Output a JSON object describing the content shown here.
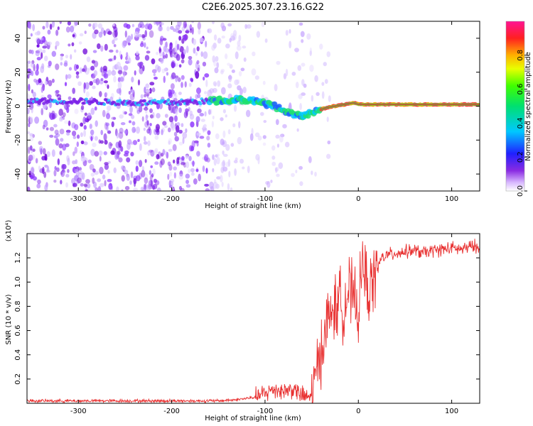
{
  "title": "C2E6.2025.307.23.16.G22",
  "chart_data": [
    {
      "type": "heatmap",
      "xlabel": "Height of straight line (km)",
      "ylabel": "Frequency (Hz)",
      "xlim": [
        -355,
        130
      ],
      "ylim": [
        -50,
        50
      ],
      "x_ticks": [
        -300,
        -200,
        -100,
        0,
        100
      ],
      "y_ticks": [
        -40,
        -20,
        0,
        20,
        40
      ],
      "colorbar": {
        "label": "Normalized spectral amplitude",
        "range": [
          0,
          1
        ],
        "ticks": [
          "0.0",
          "0.2",
          "0.4",
          "0.6",
          "0.8"
        ]
      },
      "trace": {
        "x": [
          -355,
          -300,
          -250,
          -200,
          -160,
          -130,
          -110,
          -90,
          -75,
          -62,
          -55,
          -45,
          -35,
          -25,
          -15,
          -5,
          0,
          10,
          20,
          50,
          100,
          130
        ],
        "y": [
          3,
          3,
          2,
          2,
          3,
          4,
          3,
          0,
          -4,
          -6,
          -5,
          -3,
          -1,
          0,
          1,
          2,
          1,
          1,
          1,
          1,
          1,
          1
        ]
      }
    },
    {
      "type": "line",
      "xlabel": "Height of straight line (km)",
      "ylabel": "SNR (10 * v/v)",
      "scale_label": "(x10⁴)",
      "xlim": [
        -355,
        130
      ],
      "ylim": [
        0,
        1.4
      ],
      "x_ticks": [
        -300,
        -200,
        -100,
        0,
        100
      ],
      "y_ticks": [
        "0.2",
        "0.4",
        "0.6",
        "0.8",
        "1.0",
        "1.2"
      ],
      "series": [
        {
          "name": "SNR",
          "color": "#e83030",
          "x": [
            -355,
            -300,
            -250,
            -200,
            -150,
            -130,
            -110,
            -100,
            -90,
            -80,
            -70,
            -60,
            -50,
            -45,
            -40,
            -35,
            -30,
            -25,
            -20,
            -15,
            -10,
            -5,
            0,
            5,
            10,
            15,
            20,
            25,
            30,
            40,
            50,
            60,
            70,
            80,
            90,
            100,
            110,
            120,
            130
          ],
          "y": [
            0.02,
            0.02,
            0.02,
            0.02,
            0.02,
            0.03,
            0.05,
            0.08,
            0.12,
            0.1,
            0.12,
            0.06,
            0.05,
            0.25,
            0.45,
            0.6,
            0.75,
            0.78,
            0.85,
            0.8,
            0.95,
            0.85,
            0.75,
            1.2,
            0.9,
            1.0,
            1.1,
            1.2,
            1.22,
            1.24,
            1.25,
            1.26,
            1.24,
            1.26,
            1.27,
            1.28,
            1.27,
            1.29,
            1.3
          ]
        }
      ]
    }
  ]
}
